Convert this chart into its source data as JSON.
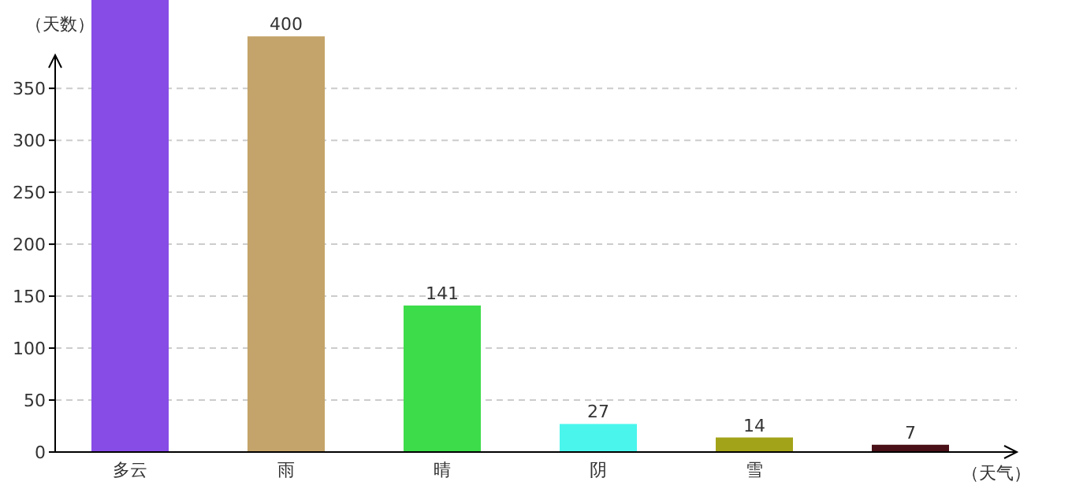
{
  "chart_data": {
    "type": "bar",
    "xlabel": "（天气）",
    "ylabel": "（天数）",
    "categories": [
      "多云",
      "雨",
      "晴",
      "阴",
      "雪",
      null
    ],
    "values": [
      435,
      400,
      141,
      27,
      14,
      7
    ],
    "value_labels": [
      null,
      "400",
      "141",
      "27",
      "14",
      "7"
    ],
    "colors": [
      "#874ce6",
      "#c4a46a",
      "#3ddc4a",
      "#4af5ec",
      "#a3a319",
      "#4a1018"
    ],
    "ylim": [
      0,
      435
    ],
    "yticks": [
      0,
      50,
      100,
      150,
      200,
      250,
      300,
      350
    ],
    "grid": "y"
  }
}
